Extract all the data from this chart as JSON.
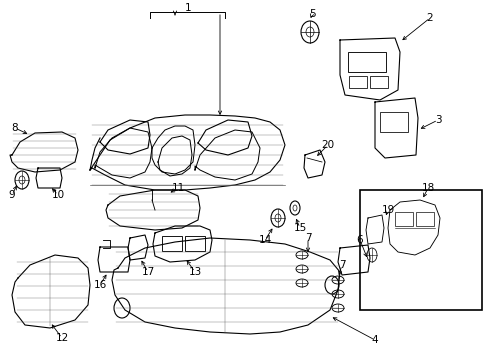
{
  "background_color": "#ffffff",
  "line_color": "#000000",
  "lw": 0.8,
  "font_size": 7.5,
  "fig_w": 4.89,
  "fig_h": 3.6,
  "dpi": 100
}
